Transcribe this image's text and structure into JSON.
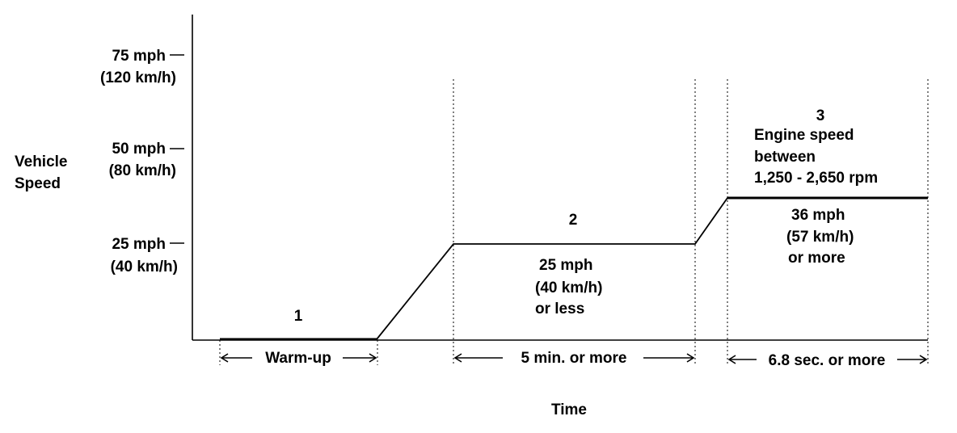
{
  "y_axis": {
    "label_line1": "Vehicle",
    "label_line2": "Speed",
    "ticks": [
      {
        "mph": "75 mph",
        "kmh": "(120 km/h)"
      },
      {
        "mph": "50 mph",
        "kmh": "(80 km/h)"
      },
      {
        "mph": "25 mph",
        "kmh": "(40 km/h)"
      }
    ]
  },
  "x_axis": {
    "label": "Time"
  },
  "phases": [
    {
      "number": "1",
      "duration": "Warm-up"
    },
    {
      "number": "2",
      "duration": "5 min. or more",
      "speed_lines": [
        "25 mph",
        "(40 km/h)",
        "or less"
      ]
    },
    {
      "number": "3",
      "duration": "6.8 sec. or more",
      "engine_lines": [
        "Engine speed",
        "between",
        "1,250 - 2,650 rpm"
      ],
      "speed_lines": [
        "36 mph",
        "(57 km/h)",
        "or more"
      ]
    }
  ]
}
